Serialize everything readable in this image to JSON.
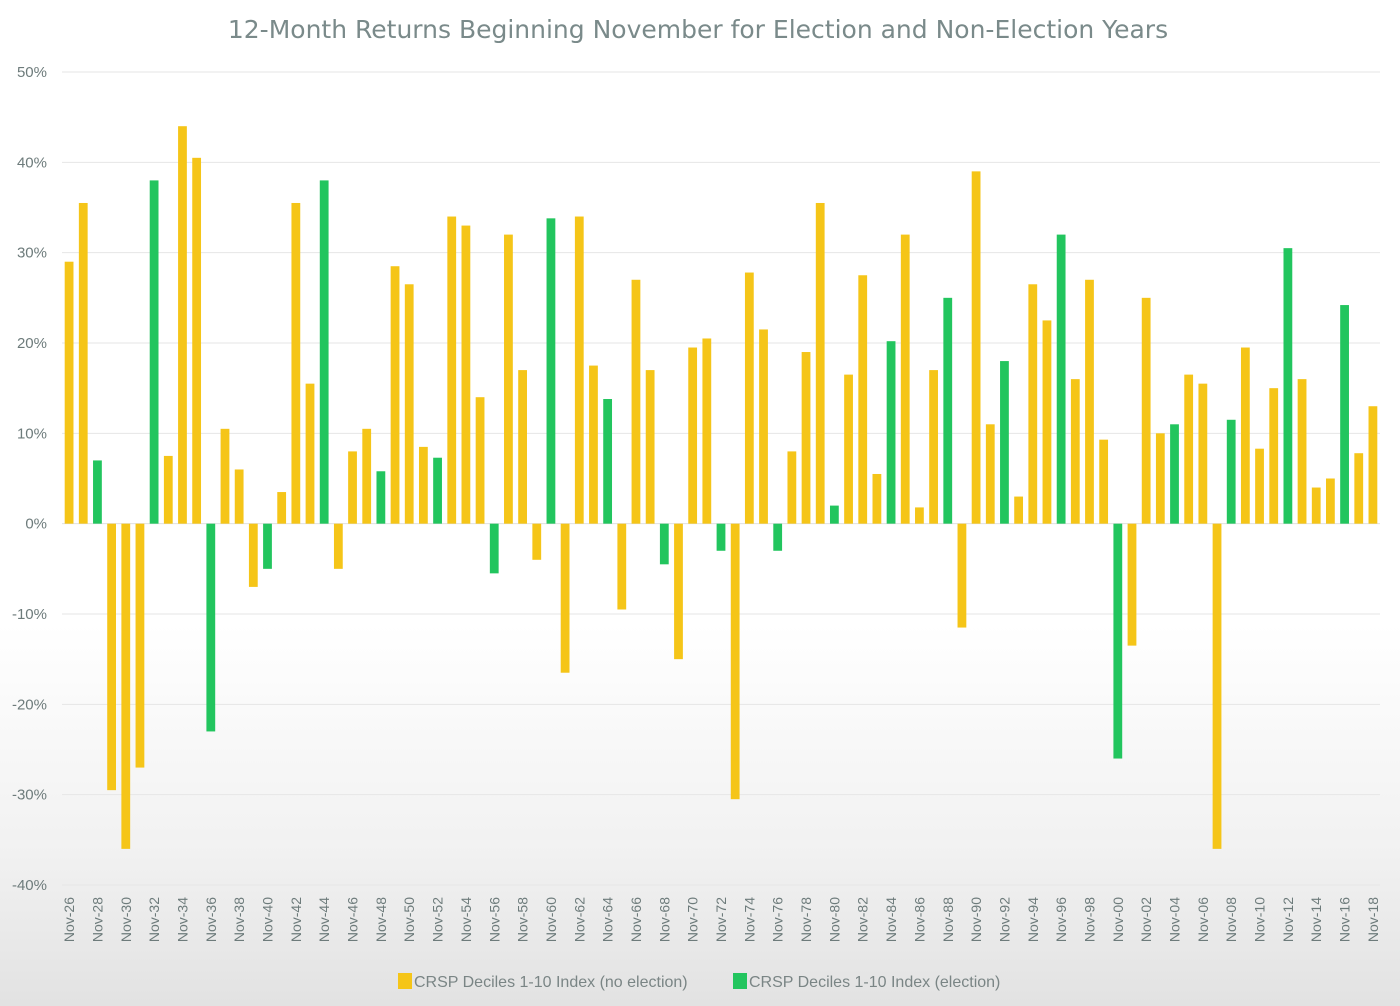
{
  "chart_data": {
    "type": "bar",
    "title": "12-Month Returns Beginning November for Election and Non-Election Years",
    "xlabel": "",
    "ylabel": "",
    "ylim": [
      -40,
      50
    ],
    "y_ticks": [
      "50%",
      "40%",
      "30%",
      "20%",
      "10%",
      "0%",
      "-10%",
      "-20%",
      "-30%",
      "-40%"
    ],
    "y_tick_values": [
      50,
      40,
      30,
      20,
      10,
      0,
      -10,
      -20,
      -30,
      -40
    ],
    "grid": true,
    "legend_position": "bottom",
    "colors": {
      "no_election": "#F5C518",
      "election": "#22C55E"
    },
    "legend": [
      {
        "key": "no_election",
        "label": "CRSP Deciles 1-10 Index (no election)"
      },
      {
        "key": "election",
        "label": "CRSP Deciles 1-10 Index (election)"
      }
    ],
    "x_tick_labels": [
      "Nov-26",
      "Nov-28",
      "Nov-30",
      "Nov-32",
      "Nov-34",
      "Nov-36",
      "Nov-38",
      "Nov-40",
      "Nov-42",
      "Nov-44",
      "Nov-46",
      "Nov-48",
      "Nov-50",
      "Nov-52",
      "Nov-54",
      "Nov-56",
      "Nov-58",
      "Nov-60",
      "Nov-62",
      "Nov-64",
      "Nov-66",
      "Nov-68",
      "Nov-70",
      "Nov-72",
      "Nov-74",
      "Nov-76",
      "Nov-78",
      "Nov-80",
      "Nov-82",
      "Nov-84",
      "Nov-86",
      "Nov-88",
      "Nov-90",
      "Nov-92",
      "Nov-94",
      "Nov-96",
      "Nov-98",
      "Nov-00",
      "Nov-02",
      "Nov-04",
      "Nov-06",
      "Nov-08",
      "Nov-10",
      "Nov-12",
      "Nov-14",
      "Nov-16",
      "Nov-18"
    ],
    "categories": [
      "Nov-26",
      "Nov-27",
      "Nov-28",
      "Nov-29",
      "Nov-30",
      "Nov-31",
      "Nov-32",
      "Nov-33",
      "Nov-34",
      "Nov-35",
      "Nov-36",
      "Nov-37",
      "Nov-38",
      "Nov-39",
      "Nov-40",
      "Nov-41",
      "Nov-42",
      "Nov-43",
      "Nov-44",
      "Nov-45",
      "Nov-46",
      "Nov-47",
      "Nov-48",
      "Nov-49",
      "Nov-50",
      "Nov-51",
      "Nov-52",
      "Nov-53",
      "Nov-54",
      "Nov-55",
      "Nov-56",
      "Nov-57",
      "Nov-58",
      "Nov-59",
      "Nov-60",
      "Nov-61",
      "Nov-62",
      "Nov-63",
      "Nov-64",
      "Nov-65",
      "Nov-66",
      "Nov-67",
      "Nov-68",
      "Nov-69",
      "Nov-70",
      "Nov-71",
      "Nov-72",
      "Nov-73",
      "Nov-74",
      "Nov-75",
      "Nov-76",
      "Nov-77",
      "Nov-78",
      "Nov-79",
      "Nov-80",
      "Nov-81",
      "Nov-82",
      "Nov-83",
      "Nov-84",
      "Nov-85",
      "Nov-86",
      "Nov-87",
      "Nov-88",
      "Nov-89",
      "Nov-90",
      "Nov-91",
      "Nov-92",
      "Nov-93",
      "Nov-94",
      "Nov-95",
      "Nov-96",
      "Nov-97",
      "Nov-98",
      "Nov-99",
      "Nov-00",
      "Nov-01",
      "Nov-02",
      "Nov-03",
      "Nov-04",
      "Nov-05",
      "Nov-06",
      "Nov-07",
      "Nov-08",
      "Nov-09",
      "Nov-10",
      "Nov-11",
      "Nov-12",
      "Nov-13",
      "Nov-14",
      "Nov-15",
      "Nov-16",
      "Nov-17",
      "Nov-18"
    ],
    "values": [
      29,
      35.5,
      7,
      -29.5,
      -36,
      -27,
      38,
      7.5,
      44,
      40.5,
      -23,
      10.5,
      6,
      -7,
      -5,
      3.5,
      35.5,
      15.5,
      38,
      -5,
      8,
      10.5,
      5.8,
      28.5,
      26.5,
      8.5,
      7.3,
      34,
      33,
      14,
      -5.5,
      32,
      17,
      -4,
      33.8,
      -16.5,
      34,
      17.5,
      13.8,
      -9.5,
      27,
      17,
      -4.5,
      -15,
      19.5,
      20.5,
      -3,
      -30.5,
      27.8,
      21.5,
      -3,
      8,
      19,
      35.5,
      2,
      16.5,
      27.5,
      5.5,
      20.2,
      32,
      1.8,
      17,
      25,
      -11.5,
      39,
      11,
      18,
      3,
      26.5,
      22.5,
      32,
      16,
      27,
      9.3,
      -26,
      -13.5,
      25,
      10,
      11,
      16.5,
      15.5,
      -36,
      11.5,
      19.5,
      8.3,
      15,
      30.5,
      16,
      4,
      5,
      24.2,
      7.8,
      13
    ],
    "election": [
      false,
      false,
      true,
      false,
      false,
      false,
      true,
      false,
      false,
      false,
      true,
      false,
      false,
      false,
      true,
      false,
      false,
      false,
      true,
      false,
      false,
      false,
      true,
      false,
      false,
      false,
      true,
      false,
      false,
      false,
      true,
      false,
      false,
      false,
      true,
      false,
      false,
      false,
      true,
      false,
      false,
      false,
      true,
      false,
      false,
      false,
      true,
      false,
      false,
      false,
      true,
      false,
      false,
      false,
      true,
      false,
      false,
      false,
      true,
      false,
      false,
      false,
      true,
      false,
      false,
      false,
      true,
      false,
      false,
      false,
      true,
      false,
      false,
      false,
      true,
      false,
      false,
      false,
      true,
      false,
      false,
      false,
      true,
      false,
      false,
      false,
      true,
      false,
      false,
      false,
      true,
      false,
      false
    ]
  }
}
